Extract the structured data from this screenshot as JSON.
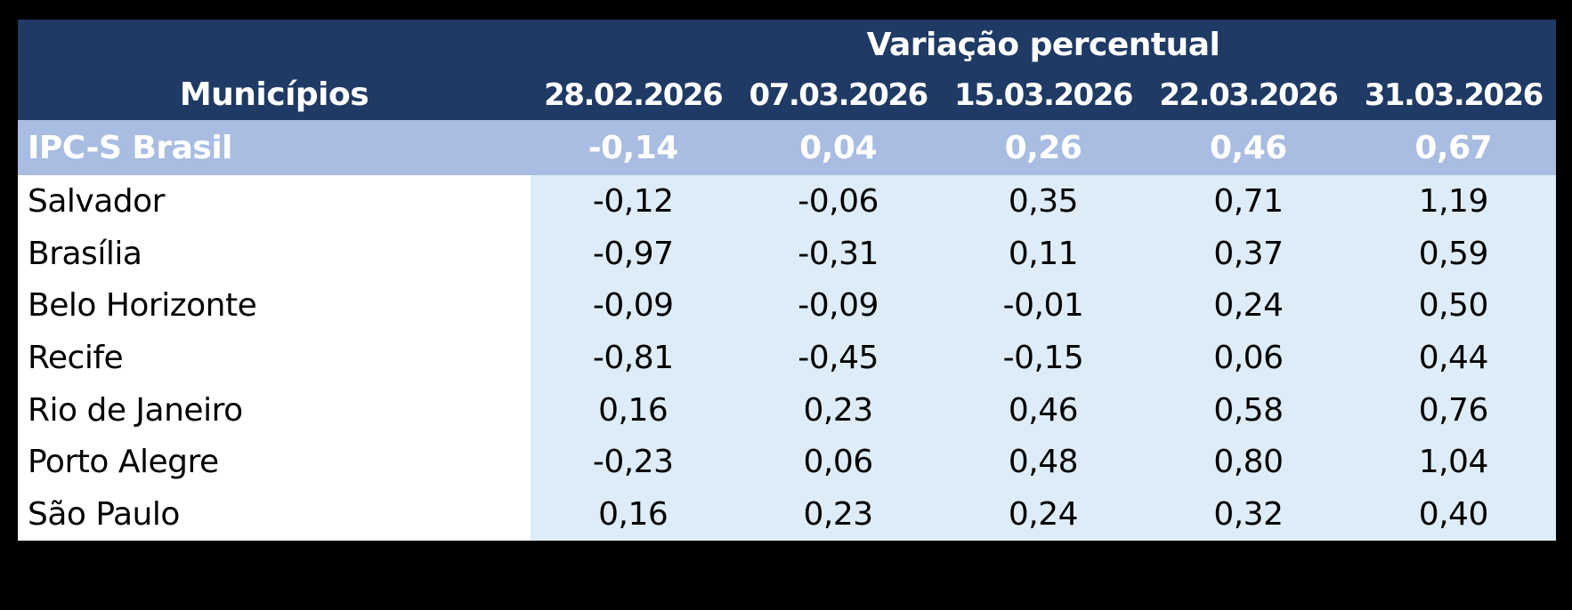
{
  "page": {
    "background": "#000000"
  },
  "colors": {
    "header_bg": "#1f3a64",
    "header_text": "#ffffff",
    "highlight_bg": "#a9bce2",
    "highlight_text": "#ffffff",
    "label_bg": "#ffffff",
    "value_bg": "#ddecf6",
    "row_text": "#000000"
  },
  "table": {
    "span_header": "Variação percentual",
    "col1_header": "Municípios",
    "date_headers": [
      "28.02.2026",
      "07.03.2026",
      "15.03.2026",
      "22.03.2026",
      "31.03.2026"
    ],
    "highlight": {
      "label": "IPC-S Brasil",
      "values": [
        "-0,14",
        "0,04",
        "0,26",
        "0,46",
        "0,67"
      ]
    },
    "rows": [
      {
        "label": "Salvador",
        "values": [
          "-0,12",
          "-0,06",
          "0,35",
          "0,71",
          "1,19"
        ]
      },
      {
        "label": "Brasília",
        "values": [
          "-0,97",
          "-0,31",
          "0,11",
          "0,37",
          "0,59"
        ]
      },
      {
        "label": "Belo Horizonte",
        "values": [
          "-0,09",
          "-0,09",
          "-0,01",
          "0,24",
          "0,50"
        ]
      },
      {
        "label": "Recife",
        "values": [
          "-0,81",
          "-0,45",
          "-0,15",
          "0,06",
          "0,44"
        ]
      },
      {
        "label": "Rio de Janeiro",
        "values": [
          "0,16",
          "0,23",
          "0,46",
          "0,58",
          "0,76"
        ]
      },
      {
        "label": "Porto Alegre",
        "values": [
          "-0,23",
          "0,06",
          "0,48",
          "0,80",
          "1,04"
        ]
      },
      {
        "label": "São Paulo",
        "values": [
          "0,16",
          "0,23",
          "0,24",
          "0,32",
          "0,40"
        ]
      }
    ]
  },
  "chart_data": {
    "type": "table",
    "title": "Variação percentual",
    "row_header": "Municípios",
    "columns": [
      "28.02.2026",
      "07.03.2026",
      "15.03.2026",
      "22.03.2026",
      "31.03.2026"
    ],
    "rows": [
      {
        "name": "IPC-S Brasil",
        "values": [
          -0.14,
          0.04,
          0.26,
          0.46,
          0.67
        ]
      },
      {
        "name": "Salvador",
        "values": [
          -0.12,
          -0.06,
          0.35,
          0.71,
          1.19
        ]
      },
      {
        "name": "Brasília",
        "values": [
          -0.97,
          -0.31,
          0.11,
          0.37,
          0.59
        ]
      },
      {
        "name": "Belo Horizonte",
        "values": [
          -0.09,
          -0.09,
          -0.01,
          0.24,
          0.5
        ]
      },
      {
        "name": "Recife",
        "values": [
          -0.81,
          -0.45,
          -0.15,
          0.06,
          0.44
        ]
      },
      {
        "name": "Rio de Janeiro",
        "values": [
          0.16,
          0.23,
          0.46,
          0.58,
          0.76
        ]
      },
      {
        "name": "Porto Alegre",
        "values": [
          -0.23,
          0.06,
          0.48,
          0.8,
          1.04
        ]
      },
      {
        "name": "São Paulo",
        "values": [
          0.16,
          0.23,
          0.24,
          0.32,
          0.4
        ]
      }
    ]
  }
}
